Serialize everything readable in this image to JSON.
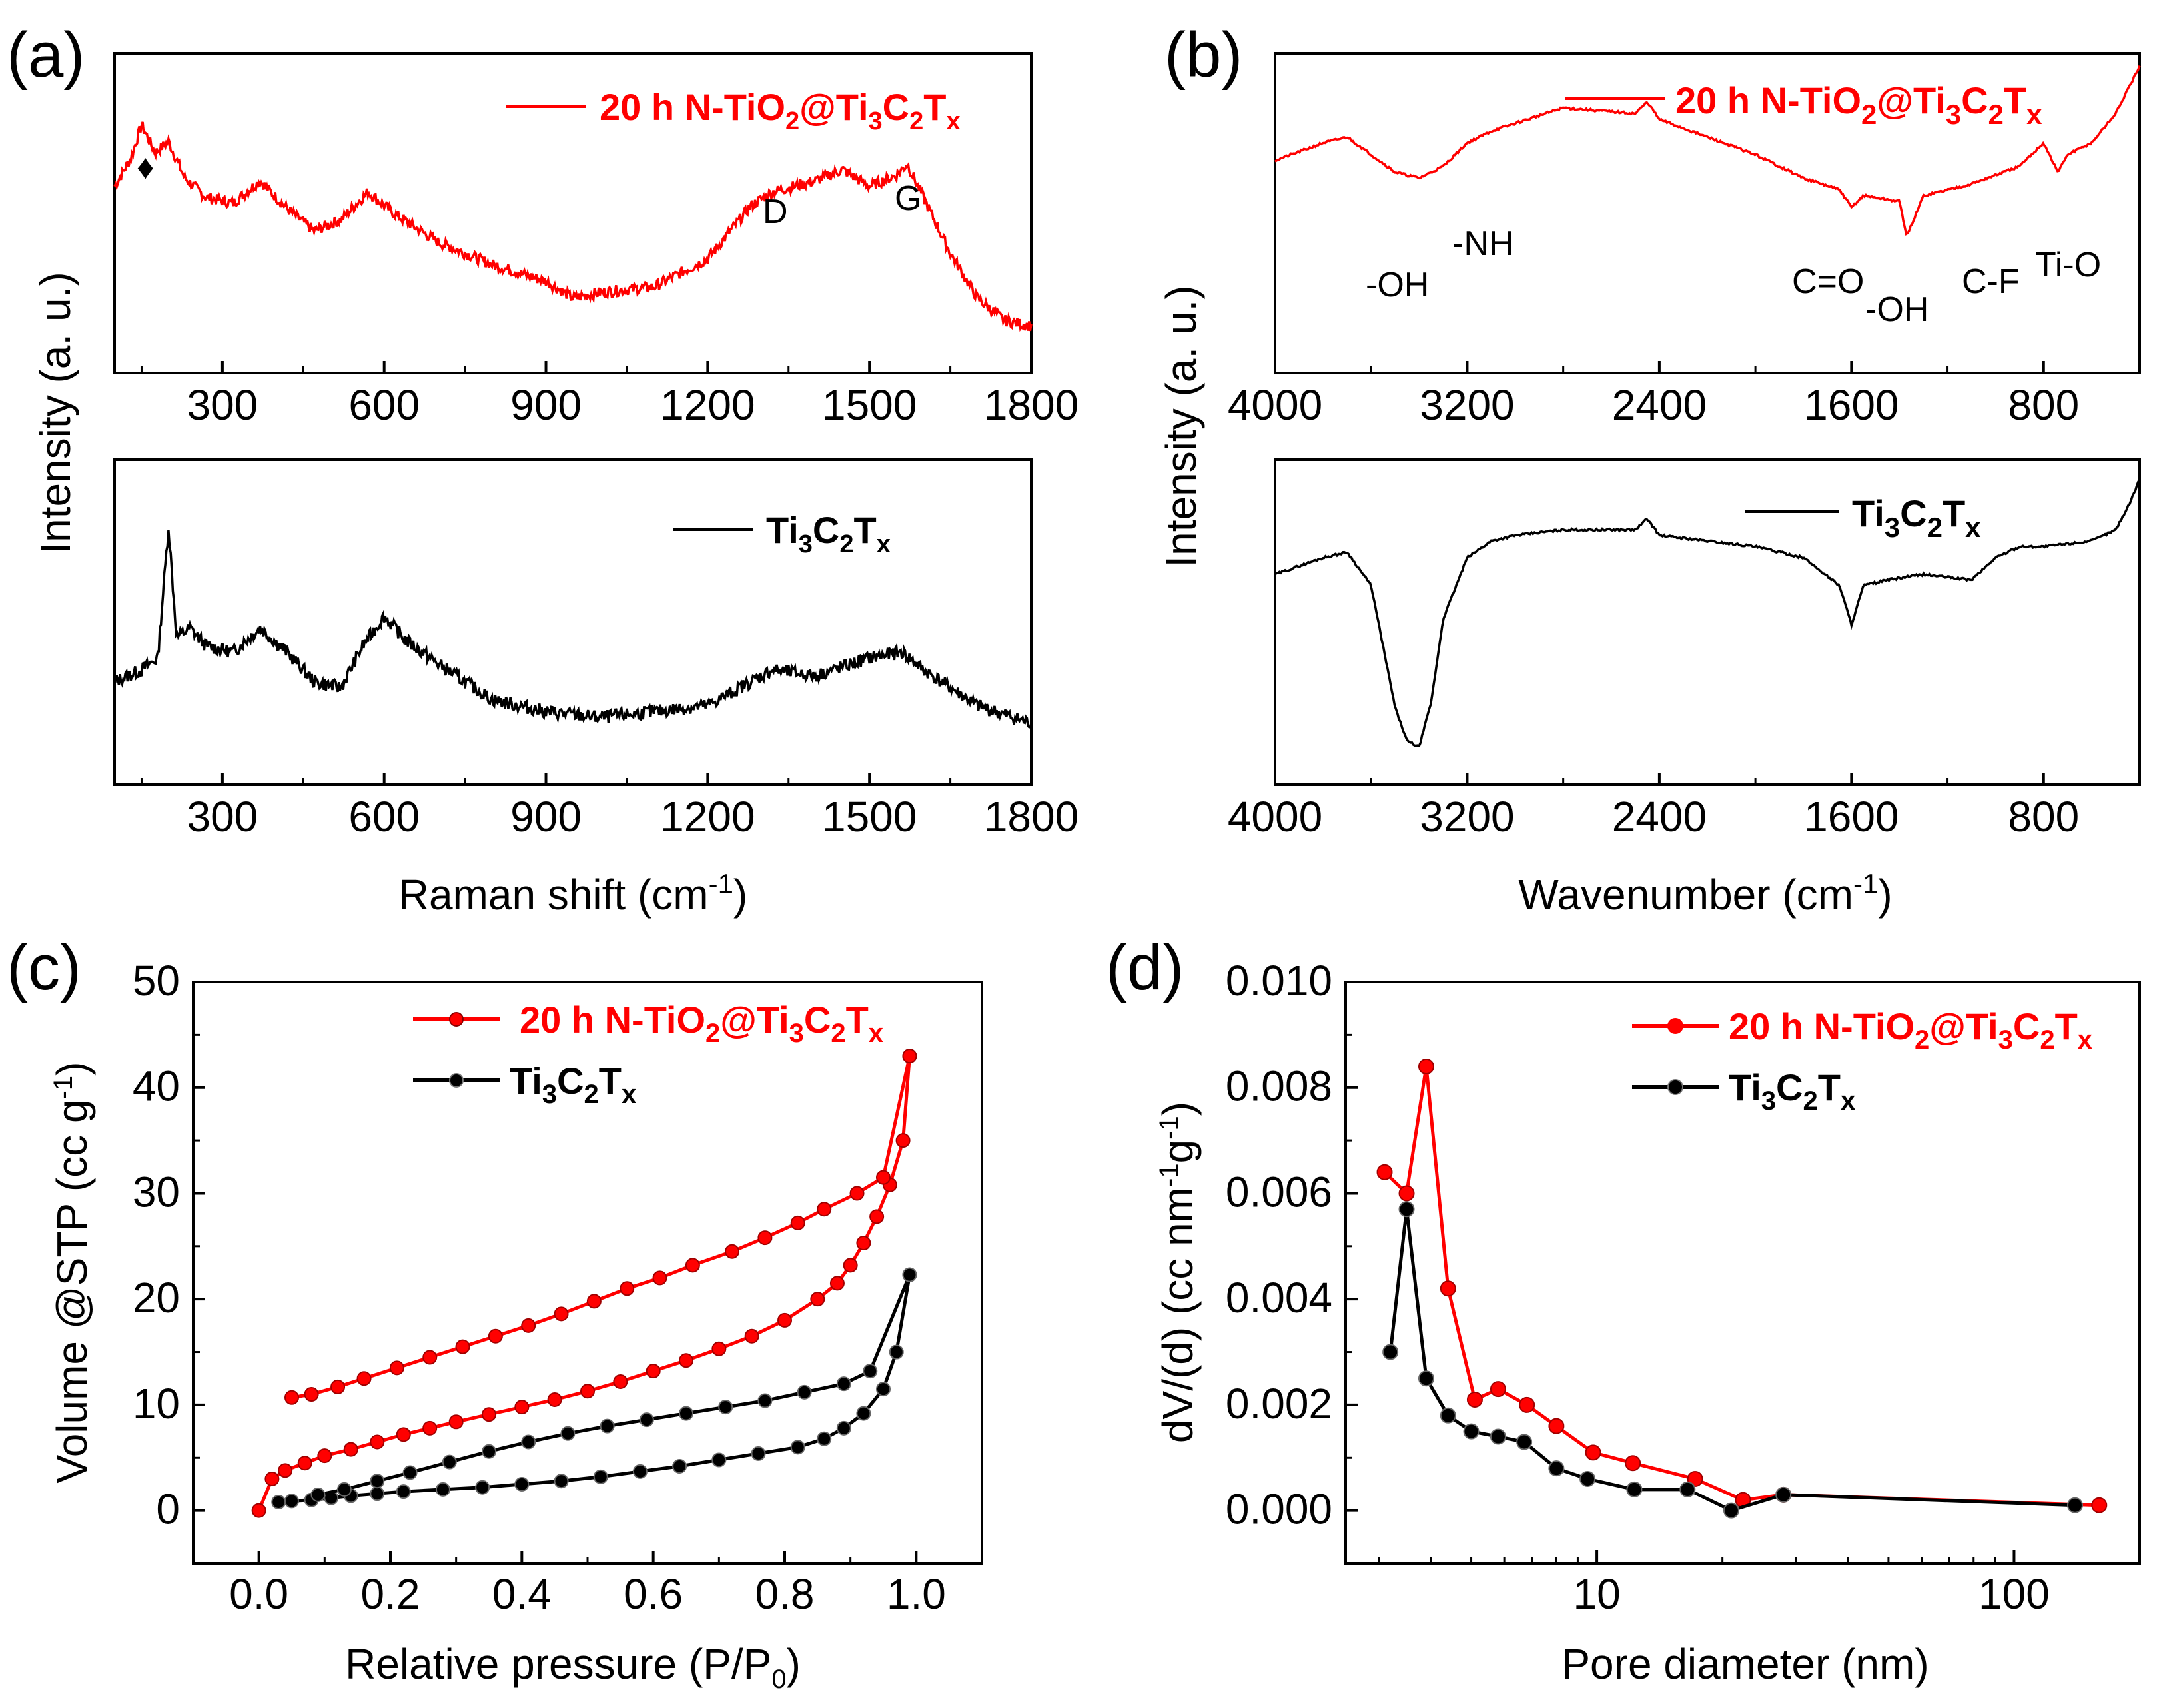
{
  "colors": {
    "red": "#ff0000",
    "black": "#000000"
  },
  "panels": {
    "a": {
      "label": "(a)",
      "xlabel": "Raman shift (cm",
      "xlabel_sup": "-1",
      "xlabel_end": ")",
      "ylabel": "Intensity (a. u.)",
      "xticks": [
        "300",
        "600",
        "900",
        "1200",
        "1500",
        "1800"
      ],
      "legend_top": {
        "pre": "20 h N-TiO",
        "s1": "2",
        "mid": "@Ti",
        "s2": "3",
        "mid2": "C",
        "s3": "2",
        "mid3": "T",
        "s4": "x"
      },
      "legend_bottom": {
        "pre": "Ti",
        "s1": "3",
        "mid": "C",
        "s2": "2",
        "mid2": "T",
        "s3": "x"
      },
      "marker": "♦",
      "peak_d": "D",
      "peak_g": "G"
    },
    "b": {
      "label": "(b)",
      "xlabel": "Wavenumber (cm",
      "xlabel_sup": "-1",
      "xlabel_end": ")",
      "ylabel": "Intensity (a. u.)",
      "xticks": [
        "4000",
        "3200",
        "2400",
        "1600",
        "800"
      ],
      "legend_top": {
        "pre": "20 h N-TiO",
        "s1": "2",
        "mid": "@Ti",
        "s2": "3",
        "mid2": "C",
        "s3": "2",
        "mid3": "T",
        "s4": "x"
      },
      "legend_bottom": {
        "pre": "Ti",
        "s1": "3",
        "mid": "C",
        "s2": "2",
        "mid2": "T",
        "s3": "x"
      },
      "annotations": [
        "-OH",
        "-NH",
        "C=O",
        "-OH",
        "C-F",
        "Ti-O"
      ]
    },
    "c": {
      "label": "(c)",
      "xlabel": "Relative pressure (P/P",
      "xlabel_sub": "0",
      "xlabel_end": ")",
      "ylabel": "Volume @STP (cc g",
      "ylabel_sup": "-1",
      "ylabel_end": ")",
      "xticks": [
        "0.0",
        "0.2",
        "0.4",
        "0.6",
        "0.8",
        "1.0"
      ],
      "yticks": [
        "0",
        "10",
        "20",
        "30",
        "40",
        "50"
      ],
      "legend": [
        {
          "pre": "20 h N-TiO",
          "s1": "2",
          "mid": "@Ti",
          "s2": "3",
          "mid2": "C",
          "s3": "2",
          "mid3": "T",
          "s4": "x"
        },
        {
          "pre": "Ti",
          "s1": "3",
          "mid": "C",
          "s2": "2",
          "mid2": "T",
          "s3": "x"
        }
      ]
    },
    "d": {
      "label": "(d)",
      "xlabel": "Pore diameter (nm)",
      "ylabel": "dV/(d) (cc nm",
      "ylabel_sup1": "-1",
      "ylabel_mid": "g",
      "ylabel_sup2": "-1",
      "ylabel_end": ")",
      "xticks": [
        "10",
        "100"
      ],
      "yticks": [
        "0.000",
        "0.002",
        "0.004",
        "0.006",
        "0.008",
        "0.010"
      ],
      "legend": [
        {
          "pre": "20 h N-TiO",
          "s1": "2",
          "mid": "@Ti",
          "s2": "3",
          "mid2": "C",
          "s3": "2",
          "mid3": "T",
          "s4": "x"
        },
        {
          "pre": "Ti",
          "s1": "3",
          "mid": "C",
          "s2": "2",
          "mid2": "T",
          "s3": "x"
        }
      ]
    }
  },
  "chart_data": [
    {
      "type": "line",
      "panel": "a-top",
      "title": "",
      "xlabel": "Raman shift (cm-1)",
      "ylabel": "Intensity (a. u.)",
      "xlim": [
        100,
        1800
      ],
      "ylim": [
        0,
        1
      ],
      "series": [
        {
          "name": "20 h N-TiO2@Ti3C2Tx",
          "color": "#ff0000",
          "x": [
            100,
            130,
            150,
            175,
            200,
            230,
            270,
            320,
            370,
            420,
            470,
            520,
            570,
            620,
            700,
            800,
            900,
            950,
            1000,
            1100,
            1200,
            1280,
            1320,
            1400,
            1450,
            1500,
            1550,
            1570,
            1600,
            1650,
            1700,
            1750,
            1800
          ],
          "y": [
            0.62,
            0.72,
            0.84,
            0.74,
            0.78,
            0.65,
            0.58,
            0.56,
            0.64,
            0.54,
            0.46,
            0.5,
            0.6,
            0.52,
            0.42,
            0.34,
            0.28,
            0.22,
            0.24,
            0.26,
            0.36,
            0.55,
            0.6,
            0.64,
            0.68,
            0.62,
            0.66,
            0.7,
            0.58,
            0.38,
            0.22,
            0.14,
            0.12
          ]
        }
      ]
    },
    {
      "type": "line",
      "panel": "a-bottom",
      "title": "",
      "xlabel": "Raman shift (cm-1)",
      "ylabel": "Intensity (a. u.)",
      "xlim": [
        100,
        1800
      ],
      "ylim": [
        0,
        1
      ],
      "series": [
        {
          "name": "Ti3C2Tx",
          "color": "#000000",
          "x": [
            100,
            150,
            180,
            200,
            215,
            240,
            270,
            320,
            370,
            420,
            470,
            520,
            560,
            600,
            640,
            700,
            800,
            900,
            1000,
            1100,
            1200,
            1280,
            1320,
            1400,
            1500,
            1560,
            1600,
            1700,
            1800
          ],
          "y": [
            0.3,
            0.34,
            0.38,
            0.82,
            0.45,
            0.48,
            0.42,
            0.4,
            0.48,
            0.4,
            0.3,
            0.28,
            0.42,
            0.52,
            0.44,
            0.36,
            0.24,
            0.2,
            0.18,
            0.2,
            0.22,
            0.3,
            0.34,
            0.32,
            0.38,
            0.4,
            0.34,
            0.22,
            0.16
          ]
        }
      ]
    },
    {
      "type": "line",
      "panel": "b-top",
      "title": "",
      "xlabel": "Wavenumber (cm-1)",
      "ylabel": "Intensity (a. u.)",
      "xlim": [
        4000,
        400
      ],
      "ylim": [
        0,
        1
      ],
      "series": [
        {
          "name": "20 h N-TiO2@Ti3C2Tx",
          "color": "#000000",
          "x": [
            4000,
            3800,
            3700,
            3600,
            3500,
            3400,
            3300,
            3200,
            3100,
            2800,
            2500,
            2450,
            2400,
            2200,
            2000,
            1800,
            1650,
            1600,
            1550,
            1400,
            1370,
            1300,
            1100,
            900,
            800,
            740,
            700,
            600,
            500,
            450,
            400
          ],
          "y": [
            0.68,
            0.74,
            0.76,
            0.7,
            0.64,
            0.62,
            0.66,
            0.74,
            0.78,
            0.86,
            0.84,
            0.88,
            0.82,
            0.76,
            0.7,
            0.62,
            0.58,
            0.52,
            0.56,
            0.54,
            0.42,
            0.56,
            0.6,
            0.66,
            0.74,
            0.64,
            0.7,
            0.74,
            0.84,
            0.92,
            1.0
          ]
        }
      ]
    },
    {
      "type": "line",
      "panel": "b-bottom",
      "title": "",
      "xlabel": "Wavenumber (cm-1)",
      "ylabel": "Intensity (a. u.)",
      "xlim": [
        4000,
        400
      ],
      "ylim": [
        0,
        1
      ],
      "series": [
        {
          "name": "Ti3C2Tx",
          "color": "#000000",
          "x": [
            4000,
            3800,
            3700,
            3600,
            3550,
            3500,
            3450,
            3400,
            3350,
            3300,
            3200,
            3100,
            3000,
            2800,
            2500,
            2450,
            2400,
            2200,
            2000,
            1800,
            1650,
            1600,
            1550,
            1450,
            1300,
            1100,
            1000,
            900,
            800,
            600,
            500,
            450,
            400
          ],
          "y": [
            0.66,
            0.72,
            0.74,
            0.62,
            0.4,
            0.18,
            0.06,
            0.04,
            0.2,
            0.5,
            0.72,
            0.78,
            0.8,
            0.82,
            0.82,
            0.86,
            0.8,
            0.78,
            0.76,
            0.72,
            0.62,
            0.48,
            0.62,
            0.64,
            0.66,
            0.64,
            0.72,
            0.76,
            0.76,
            0.78,
            0.82,
            0.9,
            1.0
          ]
        }
      ]
    },
    {
      "type": "line",
      "panel": "c",
      "title": "",
      "xlabel": "Relative pressure (P/P0)",
      "ylabel": "Volume @STP (cc g-1)",
      "xlim": [
        -0.1,
        1.1
      ],
      "ylim": [
        -5,
        50
      ],
      "series": [
        {
          "name": "20 h N-TiO2@Ti3C2Tx (adsorption)",
          "color": "#ff0000",
          "x": [
            0.0,
            0.02,
            0.04,
            0.07,
            0.1,
            0.14,
            0.18,
            0.22,
            0.26,
            0.3,
            0.35,
            0.4,
            0.45,
            0.5,
            0.55,
            0.6,
            0.65,
            0.7,
            0.75,
            0.8,
            0.85,
            0.88,
            0.9,
            0.92,
            0.94,
            0.96,
            0.98,
            0.99
          ],
          "y": [
            0.0,
            3.0,
            3.8,
            4.5,
            5.2,
            5.8,
            6.5,
            7.2,
            7.8,
            8.4,
            9.1,
            9.8,
            10.5,
            11.3,
            12.2,
            13.2,
            14.2,
            15.3,
            16.5,
            18.0,
            20.0,
            21.5,
            23.2,
            25.3,
            27.8,
            30.8,
            35.0,
            43.0
          ]
        },
        {
          "name": "20 h N-TiO2@Ti3C2Tx (desorption)",
          "color": "#ff0000",
          "x": [
            0.99,
            0.95,
            0.91,
            0.86,
            0.82,
            0.77,
            0.72,
            0.66,
            0.61,
            0.56,
            0.51,
            0.46,
            0.41,
            0.36,
            0.31,
            0.26,
            0.21,
            0.16,
            0.12,
            0.08,
            0.05
          ],
          "y": [
            43.0,
            31.5,
            30.0,
            28.5,
            27.2,
            25.8,
            24.5,
            23.2,
            22.0,
            21.0,
            19.8,
            18.6,
            17.5,
            16.5,
            15.5,
            14.5,
            13.5,
            12.5,
            11.7,
            11.0,
            10.7
          ]
        },
        {
          "name": "Ti3C2Tx (adsorption)",
          "color": "#000000",
          "x": [
            0.03,
            0.05,
            0.08,
            0.11,
            0.14,
            0.18,
            0.22,
            0.28,
            0.34,
            0.4,
            0.46,
            0.52,
            0.58,
            0.64,
            0.7,
            0.76,
            0.82,
            0.86,
            0.89,
            0.92,
            0.95,
            0.97,
            0.99
          ],
          "y": [
            0.8,
            0.9,
            1.0,
            1.2,
            1.4,
            1.6,
            1.8,
            2.0,
            2.2,
            2.5,
            2.8,
            3.2,
            3.7,
            4.2,
            4.8,
            5.4,
            6.0,
            6.8,
            7.8,
            9.2,
            11.5,
            15.0,
            22.3
          ]
        },
        {
          "name": "Ti3C2Tx (desorption)",
          "color": "#000000",
          "x": [
            0.99,
            0.93,
            0.89,
            0.83,
            0.77,
            0.71,
            0.65,
            0.59,
            0.53,
            0.47,
            0.41,
            0.35,
            0.29,
            0.23,
            0.18,
            0.13,
            0.09
          ],
          "y": [
            22.3,
            13.2,
            12.0,
            11.2,
            10.4,
            9.8,
            9.2,
            8.6,
            8.0,
            7.3,
            6.5,
            5.6,
            4.6,
            3.6,
            2.8,
            2.0,
            1.5
          ]
        }
      ]
    },
    {
      "type": "line",
      "panel": "d",
      "title": "",
      "xlabel": "Pore diameter (nm)",
      "ylabel": "dV/(d) (cc nm-1 g-1)",
      "xscale": "log",
      "xlim": [
        2.5,
        200
      ],
      "ylim": [
        -0.001,
        0.01
      ],
      "series": [
        {
          "name": "20 h N-TiO2@Ti3C2Tx",
          "color": "#ff0000",
          "x": [
            3.1,
            3.5,
            3.9,
            4.4,
            5.1,
            5.8,
            6.8,
            8.0,
            9.8,
            12.2,
            17.2,
            22.4,
            28.0,
            160.0
          ],
          "y": [
            0.0064,
            0.006,
            0.0084,
            0.0042,
            0.0021,
            0.0023,
            0.002,
            0.0016,
            0.0011,
            0.0009,
            0.0006,
            0.0002,
            0.0003,
            0.0001
          ]
        },
        {
          "name": "Ti3C2Tx",
          "color": "#000000",
          "x": [
            3.2,
            3.5,
            3.9,
            4.4,
            5.0,
            5.8,
            6.7,
            8.0,
            9.5,
            12.3,
            16.5,
            21.0,
            28.0,
            140.0
          ],
          "y": [
            0.003,
            0.0057,
            0.0025,
            0.0018,
            0.0015,
            0.0014,
            0.0013,
            0.0008,
            0.0006,
            0.0004,
            0.0004,
            0.0,
            0.0003,
            0.0001
          ]
        }
      ]
    }
  ]
}
